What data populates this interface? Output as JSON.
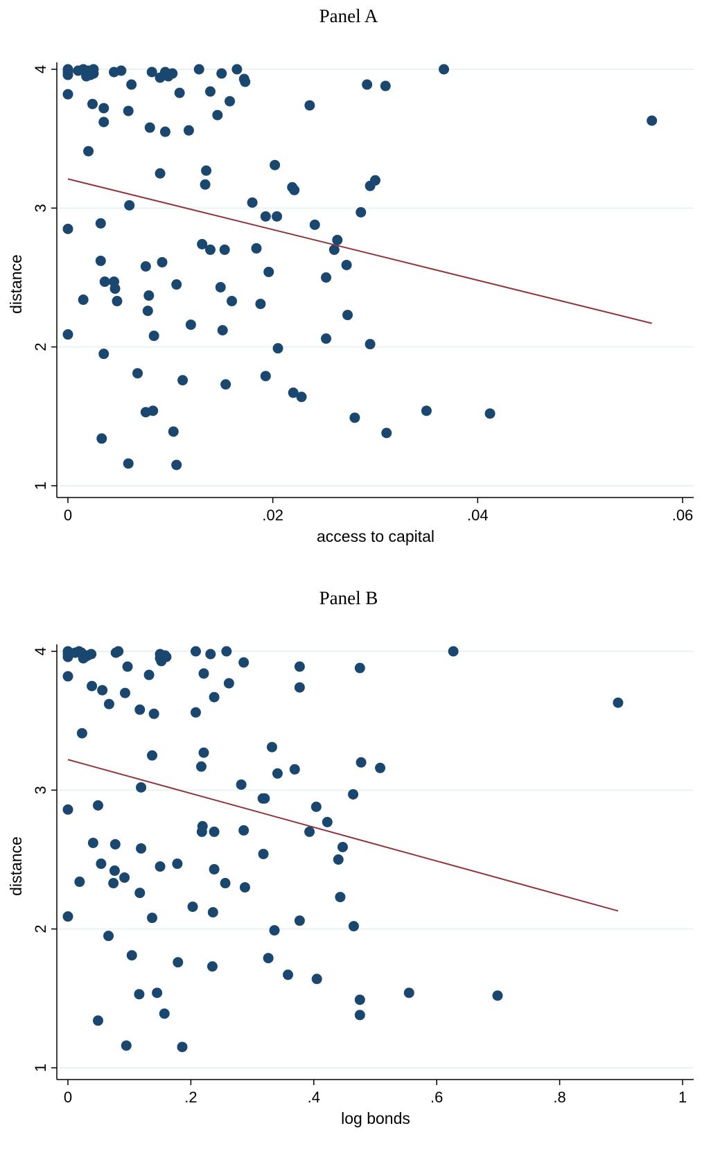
{
  "colors": {
    "marker": "#1a476f",
    "fit_line": "#90353b",
    "grid": "#eaf2f3",
    "axis": "#000000"
  },
  "chart_data": [
    {
      "type": "scatter",
      "title": "Panel A",
      "xlabel": "access to capital",
      "ylabel": "distance",
      "xlim": [
        0,
        0.06
      ],
      "ylim": [
        1,
        4
      ],
      "xticks": [
        0,
        0.02,
        0.04,
        0.06
      ],
      "xtick_labels": [
        "0",
        ".02",
        ".04",
        ".06"
      ],
      "yticks": [
        1,
        2,
        3,
        4
      ],
      "ytick_labels": [
        "1",
        "2",
        "3",
        "4"
      ],
      "grid": true,
      "legend": "none",
      "series": [
        {
          "points": [
            [
              0.0,
              4.0
            ],
            [
              0.0,
              3.98
            ],
            [
              0.0,
              3.96
            ],
            [
              0.001,
              3.99
            ],
            [
              0.0015,
              4.0
            ],
            [
              0.002,
              3.99
            ],
            [
              0.0018,
              3.95
            ],
            [
              0.0022,
              3.96
            ],
            [
              0.0025,
              4.0
            ],
            [
              0.0025,
              3.97
            ],
            [
              0.0045,
              3.98
            ],
            [
              0.0052,
              3.99
            ],
            [
              0.0082,
              3.98
            ],
            [
              0.009,
              3.94
            ],
            [
              0.0095,
              3.98
            ],
            [
              0.0098,
              3.95
            ],
            [
              0.0102,
              3.97
            ],
            [
              0.0128,
              4.0
            ],
            [
              0.015,
              3.97
            ],
            [
              0.0165,
              4.0
            ],
            [
              0.0172,
              3.93
            ],
            [
              0.0173,
              3.91
            ],
            [
              0.0367,
              4.0
            ],
            [
              0.0,
              3.82
            ],
            [
              0.0024,
              3.75
            ],
            [
              0.0035,
              3.72
            ],
            [
              0.0062,
              3.89
            ],
            [
              0.0109,
              3.83
            ],
            [
              0.0139,
              3.84
            ],
            [
              0.0146,
              3.67
            ],
            [
              0.0158,
              3.77
            ],
            [
              0.0292,
              3.89
            ],
            [
              0.031,
              3.88
            ],
            [
              0.0236,
              3.74
            ],
            [
              0.057,
              3.63
            ],
            [
              0.0035,
              3.62
            ],
            [
              0.0059,
              3.7
            ],
            [
              0.008,
              3.58
            ],
            [
              0.0095,
              3.55
            ],
            [
              0.0118,
              3.56
            ],
            [
              0.002,
              3.41
            ],
            [
              0.009,
              3.25
            ],
            [
              0.0135,
              3.27
            ],
            [
              0.0134,
              3.17
            ],
            [
              0.0202,
              3.31
            ],
            [
              0.0219,
              3.15
            ],
            [
              0.0221,
              3.13
            ],
            [
              0.0295,
              3.16
            ],
            [
              0.03,
              3.2
            ],
            [
              0.006,
              3.02
            ],
            [
              0.018,
              3.04
            ],
            [
              0.0193,
              2.94
            ],
            [
              0.0204,
              2.94
            ],
            [
              0.0286,
              2.97
            ],
            [
              0.0,
              2.85
            ],
            [
              0.0032,
              2.89
            ],
            [
              0.0241,
              2.88
            ],
            [
              0.0131,
              2.74
            ],
            [
              0.0139,
              2.7
            ],
            [
              0.0153,
              2.7
            ],
            [
              0.0184,
              2.71
            ],
            [
              0.0263,
              2.77
            ],
            [
              0.026,
              2.7
            ],
            [
              0.0032,
              2.62
            ],
            [
              0.0076,
              2.58
            ],
            [
              0.0092,
              2.61
            ],
            [
              0.0196,
              2.54
            ],
            [
              0.0252,
              2.5
            ],
            [
              0.0272,
              2.59
            ],
            [
              0.0036,
              2.47
            ],
            [
              0.0045,
              2.47
            ],
            [
              0.0046,
              2.42
            ],
            [
              0.0106,
              2.45
            ],
            [
              0.0149,
              2.43
            ],
            [
              0.0015,
              2.34
            ],
            [
              0.0048,
              2.33
            ],
            [
              0.0079,
              2.37
            ],
            [
              0.0078,
              2.26
            ],
            [
              0.016,
              2.33
            ],
            [
              0.0188,
              2.31
            ],
            [
              0.0273,
              2.23
            ],
            [
              0.0,
              2.09
            ],
            [
              0.0084,
              2.08
            ],
            [
              0.012,
              2.16
            ],
            [
              0.0151,
              2.12
            ],
            [
              0.0252,
              2.06
            ],
            [
              0.0035,
              1.95
            ],
            [
              0.0205,
              1.99
            ],
            [
              0.0295,
              2.02
            ],
            [
              0.0068,
              1.81
            ],
            [
              0.0112,
              1.76
            ],
            [
              0.0154,
              1.73
            ],
            [
              0.0193,
              1.79
            ],
            [
              0.022,
              1.67
            ],
            [
              0.0228,
              1.64
            ],
            [
              0.0076,
              1.53
            ],
            [
              0.0083,
              1.54
            ],
            [
              0.028,
              1.49
            ],
            [
              0.035,
              1.54
            ],
            [
              0.0412,
              1.52
            ],
            [
              0.0033,
              1.34
            ],
            [
              0.0103,
              1.39
            ],
            [
              0.0311,
              1.38
            ],
            [
              0.0059,
              1.16
            ],
            [
              0.0106,
              1.15
            ]
          ]
        }
      ],
      "fit_line": {
        "x": [
          0.0,
          0.057
        ],
        "y": [
          3.21,
          2.17
        ]
      }
    },
    {
      "type": "scatter",
      "title": "Panel B",
      "xlabel": "log bonds",
      "ylabel": "distance",
      "xlim": [
        0,
        1
      ],
      "ylim": [
        1,
        4
      ],
      "xticks": [
        0,
        0.2,
        0.4,
        0.6,
        0.8,
        1
      ],
      "xtick_labels": [
        "0",
        ".2",
        ".4",
        ".6",
        ".8",
        "1"
      ],
      "yticks": [
        1,
        2,
        3,
        4
      ],
      "ytick_labels": [
        "1",
        "2",
        "3",
        "4"
      ],
      "grid": true,
      "legend": "none",
      "series": [
        {
          "points": [
            [
              0.0,
              4.0
            ],
            [
              0.0,
              3.98
            ],
            [
              0.0,
              3.96
            ],
            [
              0.012,
              3.99
            ],
            [
              0.018,
              4.0
            ],
            [
              0.022,
              3.99
            ],
            [
              0.025,
              3.95
            ],
            [
              0.028,
              3.96
            ],
            [
              0.032,
              3.97
            ],
            [
              0.038,
              3.98
            ],
            [
              0.078,
              3.99
            ],
            [
              0.082,
              4.0
            ],
            [
              0.15,
              3.98
            ],
            [
              0.15,
              3.95
            ],
            [
              0.152,
              3.93
            ],
            [
              0.158,
              3.97
            ],
            [
              0.16,
              3.96
            ],
            [
              0.208,
              4.0
            ],
            [
              0.232,
              3.98
            ],
            [
              0.258,
              4.0
            ],
            [
              0.627,
              4.0
            ],
            [
              0.0,
              3.82
            ],
            [
              0.039,
              3.75
            ],
            [
              0.056,
              3.72
            ],
            [
              0.097,
              3.89
            ],
            [
              0.132,
              3.83
            ],
            [
              0.221,
              3.84
            ],
            [
              0.238,
              3.67
            ],
            [
              0.262,
              3.77
            ],
            [
              0.286,
              3.92
            ],
            [
              0.377,
              3.89
            ],
            [
              0.475,
              3.88
            ],
            [
              0.377,
              3.74
            ],
            [
              0.895,
              3.63
            ],
            [
              0.067,
              3.62
            ],
            [
              0.093,
              3.7
            ],
            [
              0.117,
              3.58
            ],
            [
              0.14,
              3.55
            ],
            [
              0.208,
              3.56
            ],
            [
              0.023,
              3.41
            ],
            [
              0.137,
              3.25
            ],
            [
              0.221,
              3.27
            ],
            [
              0.217,
              3.17
            ],
            [
              0.332,
              3.31
            ],
            [
              0.341,
              3.12
            ],
            [
              0.369,
              3.15
            ],
            [
              0.477,
              3.2
            ],
            [
              0.508,
              3.16
            ],
            [
              0.119,
              3.02
            ],
            [
              0.282,
              3.04
            ],
            [
              0.317,
              2.94
            ],
            [
              0.32,
              2.94
            ],
            [
              0.464,
              2.97
            ],
            [
              0.0,
              2.86
            ],
            [
              0.049,
              2.89
            ],
            [
              0.404,
              2.88
            ],
            [
              0.219,
              2.74
            ],
            [
              0.218,
              2.7
            ],
            [
              0.238,
              2.7
            ],
            [
              0.286,
              2.71
            ],
            [
              0.393,
              2.7
            ],
            [
              0.422,
              2.77
            ],
            [
              0.041,
              2.62
            ],
            [
              0.077,
              2.61
            ],
            [
              0.119,
              2.58
            ],
            [
              0.318,
              2.54
            ],
            [
              0.447,
              2.59
            ],
            [
              0.054,
              2.47
            ],
            [
              0.076,
              2.42
            ],
            [
              0.074,
              2.33
            ],
            [
              0.092,
              2.37
            ],
            [
              0.15,
              2.45
            ],
            [
              0.178,
              2.47
            ],
            [
              0.238,
              2.43
            ],
            [
              0.019,
              2.34
            ],
            [
              0.117,
              2.26
            ],
            [
              0.256,
              2.33
            ],
            [
              0.288,
              2.3
            ],
            [
              0.44,
              2.5
            ],
            [
              0.443,
              2.23
            ],
            [
              0.0,
              2.09
            ],
            [
              0.137,
              2.08
            ],
            [
              0.203,
              2.16
            ],
            [
              0.236,
              2.12
            ],
            [
              0.377,
              2.06
            ],
            [
              0.465,
              2.02
            ],
            [
              0.066,
              1.95
            ],
            [
              0.336,
              1.99
            ],
            [
              0.104,
              1.81
            ],
            [
              0.179,
              1.76
            ],
            [
              0.235,
              1.73
            ],
            [
              0.326,
              1.79
            ],
            [
              0.358,
              1.67
            ],
            [
              0.405,
              1.64
            ],
            [
              0.116,
              1.53
            ],
            [
              0.145,
              1.54
            ],
            [
              0.475,
              1.49
            ],
            [
              0.555,
              1.54
            ],
            [
              0.699,
              1.52
            ],
            [
              0.049,
              1.34
            ],
            [
              0.157,
              1.39
            ],
            [
              0.475,
              1.38
            ],
            [
              0.095,
              1.16
            ],
            [
              0.186,
              1.15
            ]
          ]
        }
      ],
      "fit_line": {
        "x": [
          0.0,
          0.895
        ],
        "y": [
          3.22,
          2.13
        ]
      }
    }
  ]
}
